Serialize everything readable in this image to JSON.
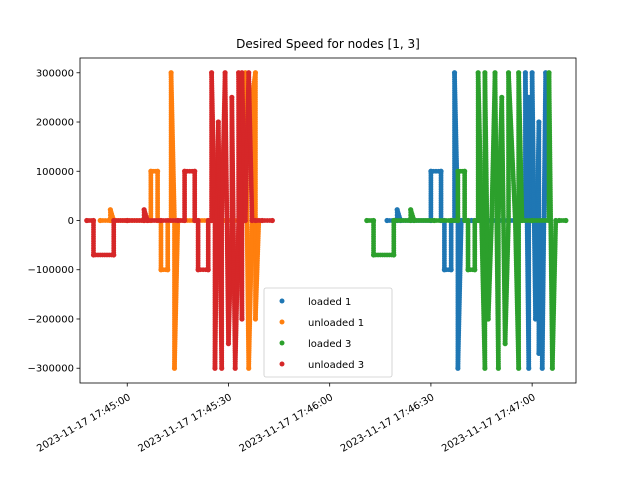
{
  "chart_data": {
    "type": "scatter",
    "title": "Desired Speed for nodes [1, 3]",
    "xlabel": "",
    "ylabel": "",
    "x_ticks": [
      "2023-11-17 17:45:00",
      "2023-11-17 17:45:30",
      "2023-11-17 17:46:00",
      "2023-11-17 17:46:30",
      "2023-11-17 17:47:00"
    ],
    "y_ticks": [
      300000,
      200000,
      100000,
      0,
      -100000,
      -200000,
      -300000
    ],
    "y_tick_labels": [
      "300000",
      "200000",
      "100000",
      "0",
      "−100000",
      "−200000",
      "−300000"
    ],
    "xlim": [
      "2023-11-17 17:44:46",
      "2023-11-17 17:47:13"
    ],
    "ylim": [
      -330000,
      330000
    ],
    "grid": false,
    "legend_position": "bottom-center",
    "series": [
      {
        "name": "loaded 1",
        "color": "#1f77b4",
        "points": [
          [
            "2023-11-17 17:46:17",
            0
          ],
          [
            "2023-11-17 17:46:20",
            0
          ],
          [
            "2023-11-17 17:46:20",
            22000
          ],
          [
            "2023-11-17 17:46:21",
            0
          ],
          [
            "2023-11-17 17:46:30",
            0
          ],
          [
            "2023-11-17 17:46:30",
            100000
          ],
          [
            "2023-11-17 17:46:33",
            100000
          ],
          [
            "2023-11-17 17:46:33",
            0
          ],
          [
            "2023-11-17 17:46:34",
            0
          ],
          [
            "2023-11-17 17:46:34",
            -100000
          ],
          [
            "2023-11-17 17:46:36",
            -100000
          ],
          [
            "2023-11-17 17:46:36",
            0
          ],
          [
            "2023-11-17 17:46:37",
            0
          ],
          [
            "2023-11-17 17:46:37",
            300000
          ],
          [
            "2023-11-17 17:46:38",
            0
          ],
          [
            "2023-11-17 17:46:38",
            -300000
          ],
          [
            "2023-11-17 17:46:39",
            0
          ],
          [
            "2023-11-17 17:46:42",
            0
          ],
          [
            "2023-11-17 17:46:48",
            0
          ],
          [
            "2023-11-17 17:46:58",
            0
          ],
          [
            "2023-11-17 17:46:58",
            300000
          ],
          [
            "2023-11-17 17:46:59",
            -300000
          ],
          [
            "2023-11-17 17:46:59",
            250000
          ],
          [
            "2023-11-17 17:47:00",
            0
          ],
          [
            "2023-11-17 17:47:00",
            300000
          ],
          [
            "2023-11-17 17:47:01",
            -200000
          ],
          [
            "2023-11-17 17:47:02",
            200000
          ],
          [
            "2023-11-17 17:47:02",
            -270000
          ],
          [
            "2023-11-17 17:47:03",
            0
          ],
          [
            "2023-11-17 17:47:03",
            -300000
          ],
          [
            "2023-11-17 17:47:04",
            300000
          ],
          [
            "2023-11-17 17:47:05",
            0
          ]
        ]
      },
      {
        "name": "unloaded 1",
        "color": "#ff7f0e",
        "points": [
          [
            "2023-11-17 17:44:52",
            0
          ],
          [
            "2023-11-17 17:44:55",
            0
          ],
          [
            "2023-11-17 17:44:55",
            22000
          ],
          [
            "2023-11-17 17:44:56",
            0
          ],
          [
            "2023-11-17 17:45:00",
            0
          ],
          [
            "2023-11-17 17:45:05",
            0
          ],
          [
            "2023-11-17 17:45:07",
            0
          ],
          [
            "2023-11-17 17:45:07",
            100000
          ],
          [
            "2023-11-17 17:45:09",
            100000
          ],
          [
            "2023-11-17 17:45:09",
            0
          ],
          [
            "2023-11-17 17:45:10",
            0
          ],
          [
            "2023-11-17 17:45:10",
            -100000
          ],
          [
            "2023-11-17 17:45:12",
            -100000
          ],
          [
            "2023-11-17 17:45:12",
            0
          ],
          [
            "2023-11-17 17:45:13",
            0
          ],
          [
            "2023-11-17 17:45:13",
            300000
          ],
          [
            "2023-11-17 17:45:14",
            0
          ],
          [
            "2023-11-17 17:45:14",
            -300000
          ],
          [
            "2023-11-17 17:45:15",
            0
          ],
          [
            "2023-11-17 17:45:20",
            0
          ],
          [
            "2023-11-17 17:45:25",
            0
          ],
          [
            "2023-11-17 17:45:29",
            0
          ],
          [
            "2023-11-17 17:45:34",
            0
          ],
          [
            "2023-11-17 17:45:35",
            0
          ],
          [
            "2023-11-17 17:45:35",
            300000
          ],
          [
            "2023-11-17 17:45:36",
            -300000
          ],
          [
            "2023-11-17 17:45:37",
            0
          ],
          [
            "2023-11-17 17:45:37",
            250000
          ],
          [
            "2023-11-17 17:45:38",
            300000
          ],
          [
            "2023-11-17 17:45:38",
            -200000
          ],
          [
            "2023-11-17 17:45:39",
            0
          ]
        ]
      },
      {
        "name": "loaded 3",
        "color": "#2ca02c",
        "points": [
          [
            "2023-11-17 17:46:11",
            0
          ],
          [
            "2023-11-17 17:46:13",
            0
          ],
          [
            "2023-11-17 17:46:13",
            -70000
          ],
          [
            "2023-11-17 17:46:19",
            -70000
          ],
          [
            "2023-11-17 17:46:19",
            0
          ],
          [
            "2023-11-17 17:46:24",
            0
          ],
          [
            "2023-11-17 17:46:24",
            22000
          ],
          [
            "2023-11-17 17:46:25",
            0
          ],
          [
            "2023-11-17 17:46:31",
            0
          ],
          [
            "2023-11-17 17:46:36",
            0
          ],
          [
            "2023-11-17 17:46:38",
            0
          ],
          [
            "2023-11-17 17:46:38",
            100000
          ],
          [
            "2023-11-17 17:46:40",
            100000
          ],
          [
            "2023-11-17 17:46:40",
            0
          ],
          [
            "2023-11-17 17:46:41",
            0
          ],
          [
            "2023-11-17 17:46:41",
            -100000
          ],
          [
            "2023-11-17 17:46:43",
            -100000
          ],
          [
            "2023-11-17 17:46:43",
            0
          ],
          [
            "2023-11-17 17:46:44",
            0
          ],
          [
            "2023-11-17 17:46:44",
            300000
          ],
          [
            "2023-11-17 17:46:45",
            0
          ],
          [
            "2023-11-17 17:46:46",
            -300000
          ],
          [
            "2023-11-17 17:46:46",
            300000
          ],
          [
            "2023-11-17 17:46:47",
            -200000
          ],
          [
            "2023-11-17 17:46:48",
            0
          ],
          [
            "2023-11-17 17:46:49",
            300000
          ],
          [
            "2023-11-17 17:46:50",
            -300000
          ],
          [
            "2023-11-17 17:46:50",
            0
          ],
          [
            "2023-11-17 17:46:51",
            250000
          ],
          [
            "2023-11-17 17:46:52",
            -250000
          ],
          [
            "2023-11-17 17:46:53",
            0
          ],
          [
            "2023-11-17 17:46:53",
            300000
          ],
          [
            "2023-11-17 17:46:55",
            0
          ],
          [
            "2023-11-17 17:46:56",
            -300000
          ],
          [
            "2023-11-17 17:46:56",
            300000
          ],
          [
            "2023-11-17 17:46:57",
            0
          ],
          [
            "2023-11-17 17:47:00",
            0
          ],
          [
            "2023-11-17 17:47:05",
            0
          ],
          [
            "2023-11-17 17:47:05",
            300000
          ],
          [
            "2023-11-17 17:47:06",
            -300000
          ],
          [
            "2023-11-17 17:47:07",
            0
          ],
          [
            "2023-11-17 17:47:08",
            0
          ],
          [
            "2023-11-17 17:47:10",
            0
          ]
        ]
      },
      {
        "name": "unloaded 3",
        "color": "#d62728",
        "points": [
          [
            "2023-11-17 17:44:48",
            0
          ],
          [
            "2023-11-17 17:44:50",
            0
          ],
          [
            "2023-11-17 17:44:50",
            -70000
          ],
          [
            "2023-11-17 17:44:56",
            -70000
          ],
          [
            "2023-11-17 17:44:56",
            0
          ],
          [
            "2023-11-17 17:45:00",
            0
          ],
          [
            "2023-11-17 17:45:05",
            0
          ],
          [
            "2023-11-17 17:45:05",
            22000
          ],
          [
            "2023-11-17 17:45:06",
            0
          ],
          [
            "2023-11-17 17:45:10",
            0
          ],
          [
            "2023-11-17 17:45:15",
            0
          ],
          [
            "2023-11-17 17:45:17",
            0
          ],
          [
            "2023-11-17 17:45:17",
            100000
          ],
          [
            "2023-11-17 17:45:20",
            100000
          ],
          [
            "2023-11-17 17:45:20",
            0
          ],
          [
            "2023-11-17 17:45:21",
            0
          ],
          [
            "2023-11-17 17:45:21",
            -100000
          ],
          [
            "2023-11-17 17:45:24",
            -100000
          ],
          [
            "2023-11-17 17:45:24",
            0
          ],
          [
            "2023-11-17 17:45:25",
            0
          ],
          [
            "2023-11-17 17:45:25",
            300000
          ],
          [
            "2023-11-17 17:45:26",
            0
          ],
          [
            "2023-11-17 17:45:26",
            -300000
          ],
          [
            "2023-11-17 17:45:27",
            200000
          ],
          [
            "2023-11-17 17:45:28",
            -300000
          ],
          [
            "2023-11-17 17:45:28",
            0
          ],
          [
            "2023-11-17 17:45:29",
            300000
          ],
          [
            "2023-11-17 17:45:30",
            -250000
          ],
          [
            "2023-11-17 17:45:31",
            0
          ],
          [
            "2023-11-17 17:45:31",
            250000
          ],
          [
            "2023-11-17 17:45:32",
            -300000
          ],
          [
            "2023-11-17 17:45:33",
            0
          ],
          [
            "2023-11-17 17:45:33",
            300000
          ],
          [
            "2023-11-17 17:45:34",
            -200000
          ],
          [
            "2023-11-17 17:45:34",
            300000
          ],
          [
            "2023-11-17 17:45:35",
            0
          ],
          [
            "2023-11-17 17:45:36",
            300000
          ],
          [
            "2023-11-17 17:45:37",
            0
          ],
          [
            "2023-11-17 17:45:38",
            0
          ],
          [
            "2023-11-17 17:45:40",
            0
          ],
          [
            "2023-11-17 17:45:43",
            0
          ]
        ]
      }
    ]
  }
}
